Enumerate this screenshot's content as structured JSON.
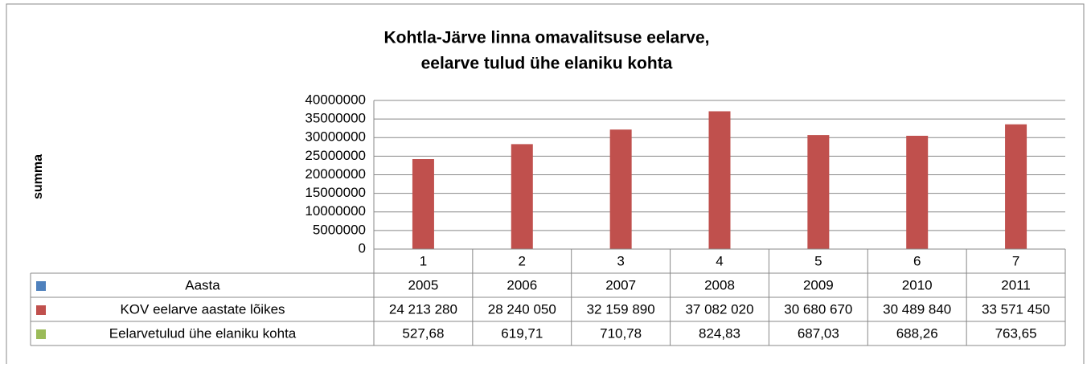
{
  "chart_data": {
    "type": "bar",
    "title": [
      "Kohtla-Järve linna omavalitsuse eelarve,",
      "eelarve tulud ühe elaniku kohta"
    ],
    "y_label": "summa",
    "categories": [
      "1",
      "2",
      "3",
      "4",
      "5",
      "6",
      "7"
    ],
    "series": [
      {
        "name": "Aasta",
        "color": "#4f81bd",
        "values": [
          2005,
          2006,
          2007,
          2008,
          2009,
          2010,
          2011
        ]
      },
      {
        "name": "KOV eelarve aastate  lõikes",
        "color": "#c0504d",
        "values": [
          24213280,
          28240050,
          32159890,
          37082020,
          30680670,
          30489840,
          33571450
        ],
        "value_labels": [
          "24 213 280",
          "28 240 050",
          "32 159 890",
          "37 082 020",
          "30 680 670",
          "30 489 840",
          "33 571 450"
        ]
      },
      {
        "name": "Eelarvetulud ühe elaniku kohta",
        "color": "#9bbb59",
        "values": [
          527.68,
          619.71,
          710.78,
          824.83,
          687.03,
          688.26,
          763.65
        ],
        "value_labels": [
          "527,68",
          "619,71",
          "710,78",
          "824,83",
          "687,03",
          "688,26",
          "763,65"
        ]
      }
    ],
    "ylim": [
      0,
      40000000
    ],
    "yticks": [
      0,
      5000000,
      10000000,
      15000000,
      20000000,
      25000000,
      30000000,
      35000000,
      40000000
    ],
    "grid": true,
    "data_table": true
  }
}
